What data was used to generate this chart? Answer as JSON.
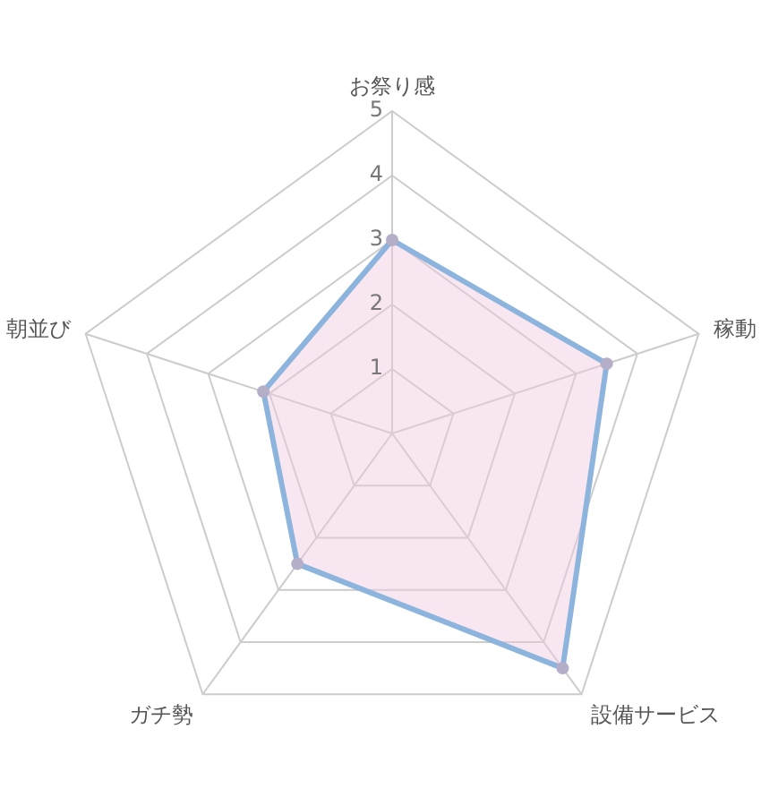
{
  "chart_data": {
    "type": "radar",
    "categories": [
      "お祭り感",
      "稼動",
      "設備サービス",
      "ガチ勢",
      "朝並び"
    ],
    "series": [
      {
        "color": "#8cb4dd",
        "values": [
          3,
          3.5,
          4.5,
          2.5,
          2.1
        ]
      }
    ],
    "ylim": [
      0,
      5
    ],
    "yticks": [
      1,
      2,
      3,
      4,
      5
    ],
    "grid": true,
    "marker": "circle",
    "line_style": "solid"
  }
}
